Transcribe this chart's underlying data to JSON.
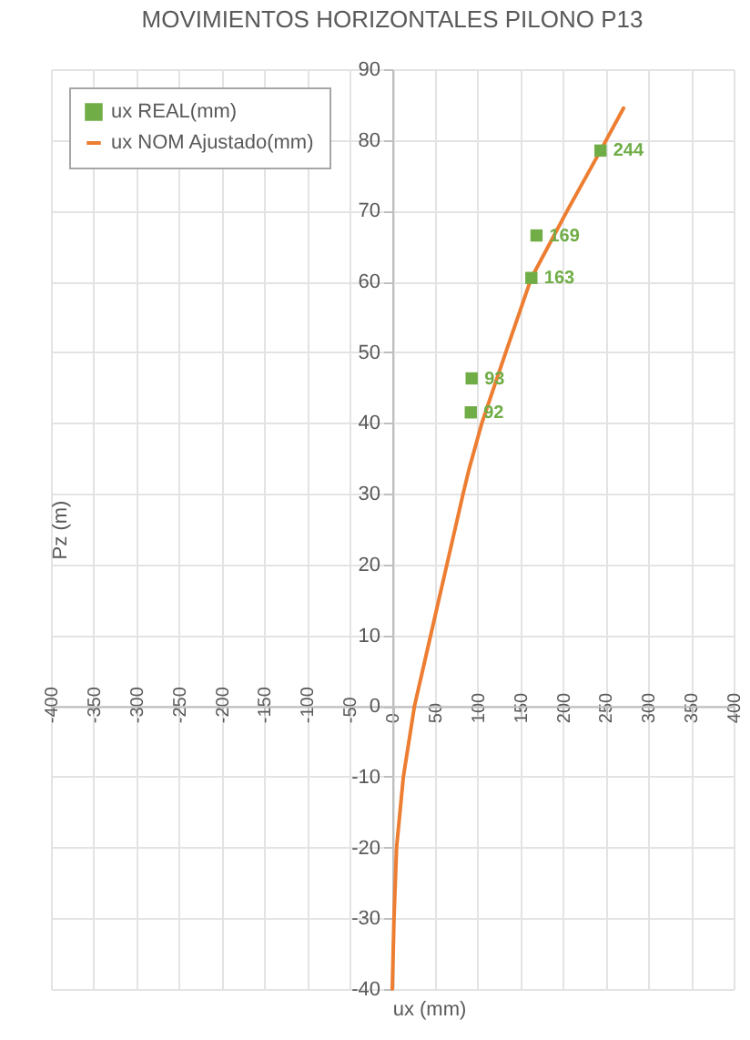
{
  "chart_data": {
    "type": "scatter",
    "title": "MOVIMIENTOS HORIZONTALES PILONO P13",
    "xlabel": "ux (mm)",
    "ylabel": "Pz (m)",
    "xlim": [
      -400,
      400
    ],
    "xticks": [
      -400,
      -350,
      -300,
      -250,
      -200,
      -150,
      -100,
      -50,
      0,
      50,
      100,
      150,
      200,
      250,
      300,
      350,
      400
    ],
    "ylim": [
      -40,
      90
    ],
    "yticks": [
      -40,
      -30,
      -20,
      -10,
      0,
      10,
      20,
      30,
      40,
      50,
      60,
      70,
      80,
      90
    ],
    "grid": true,
    "legend": "top left",
    "marker": "square",
    "series": [
      {
        "name": "ux REAL(mm)",
        "color": "#70ad47",
        "x": [
          92,
          93,
          163,
          169,
          244
        ],
        "values": [
          41.5,
          46.3,
          60.5,
          66.5,
          78.5
        ]
      },
      {
        "name": "ux NOM Ajustado(mm)",
        "type": "line",
        "color": "#ed7d31",
        "marker": "none",
        "x": [
          0,
          2,
          5,
          13,
          26,
          45,
          64,
          83,
          90,
          105,
          133,
          163,
          205,
          244,
          271
        ],
        "values": [
          -40,
          -30,
          -20,
          -10,
          0,
          10,
          20,
          30,
          33.5,
          40,
          50,
          60.5,
          70,
          78.5,
          84.5
        ]
      }
    ],
    "annotations": [
      {
        "text": "92",
        "x": 92,
        "y": 41.5
      },
      {
        "text": "93",
        "x": 93,
        "y": 46.3
      },
      {
        "text": "163",
        "x": 163,
        "y": 60.5
      },
      {
        "text": "169",
        "x": 169,
        "y": 66.5
      },
      {
        "text": "244",
        "x": 244,
        "y": 78.5
      }
    ]
  }
}
